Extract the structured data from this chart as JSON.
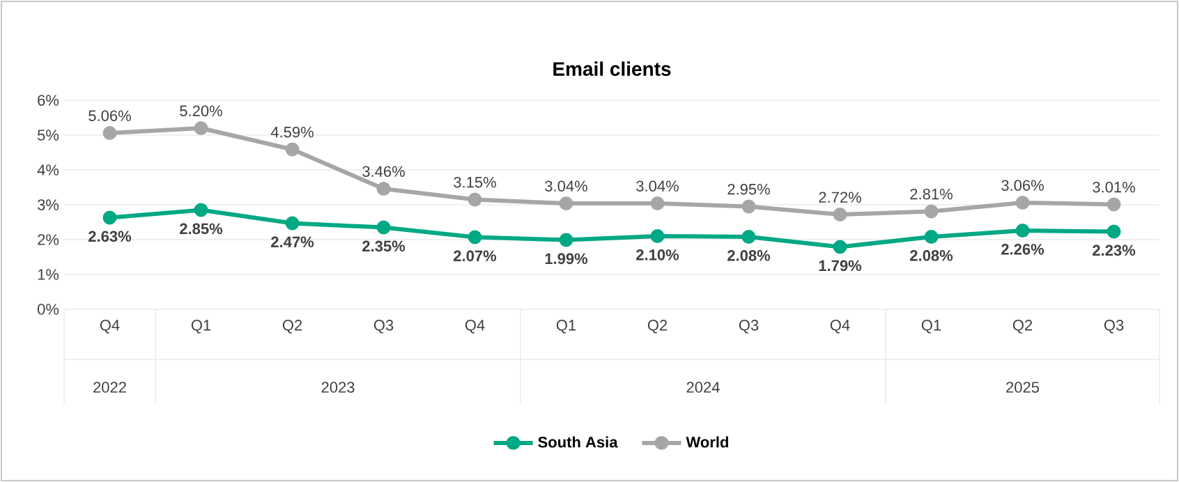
{
  "chart_data": {
    "type": "line",
    "title": "Email clients",
    "categories": [
      "Q4",
      "Q1",
      "Q2",
      "Q3",
      "Q4",
      "Q1",
      "Q2",
      "Q3",
      "Q4",
      "Q1",
      "Q2",
      "Q3"
    ],
    "annotations": [
      "2022",
      "2023",
      "2024",
      "2025"
    ],
    "series": [
      {
        "name": "South Asia",
        "color": "#00a884",
        "values": [
          2.63,
          2.85,
          2.47,
          2.35,
          2.07,
          1.99,
          2.1,
          2.08,
          1.79,
          2.08,
          2.26,
          2.23
        ],
        "value_labels": [
          "2.63%",
          "2.85%",
          "2.47%",
          "2.35%",
          "2.07%",
          "1.99%",
          "2.10%",
          "2.08%",
          "1.79%",
          "2.08%",
          "2.26%",
          "2.23%"
        ]
      },
      {
        "name": "World",
        "color": "#a6a6a6",
        "values": [
          5.06,
          5.2,
          4.59,
          3.46,
          3.15,
          3.04,
          3.04,
          2.95,
          2.72,
          2.81,
          3.06,
          3.01
        ],
        "value_labels": [
          "5.06%",
          "5.20%",
          "4.59%",
          "3.46%",
          "3.15%",
          "3.04%",
          "3.04%",
          "2.95%",
          "2.72%",
          "2.81%",
          "3.06%",
          "3.01%"
        ]
      }
    ],
    "ylim": [
      0,
      6
    ],
    "yticks": [
      {
        "value": 0,
        "label": "0%"
      },
      {
        "value": 1,
        "label": "1%"
      },
      {
        "value": 2,
        "label": "2%"
      },
      {
        "value": 3,
        "label": "3%"
      },
      {
        "value": 4,
        "label": "4%"
      },
      {
        "value": 5,
        "label": "5%"
      },
      {
        "value": 6,
        "label": "6%"
      }
    ],
    "grid": "y",
    "legend": "bottom",
    "marker": "circle",
    "line_style": "solid"
  }
}
